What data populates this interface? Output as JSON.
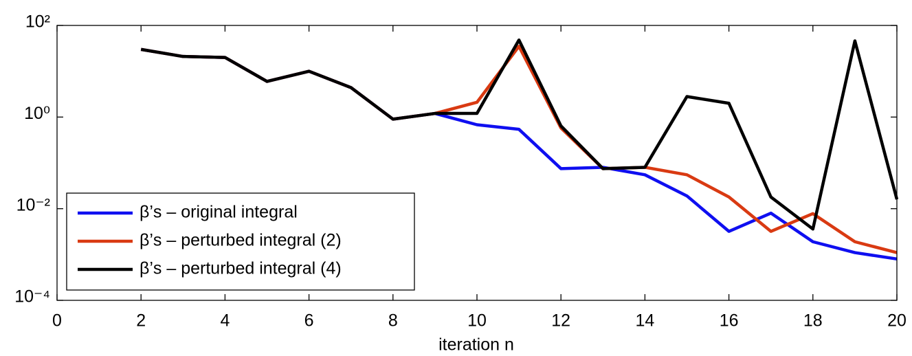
{
  "chart_data": {
    "type": "line",
    "x_label": "iteration n",
    "x": [
      2,
      3,
      4,
      5,
      6,
      7,
      8,
      9,
      10,
      11,
      12,
      13,
      14,
      15,
      16,
      17,
      18,
      19,
      20
    ],
    "series": [
      {
        "name": "β’s – original integral",
        "color": "#0f0ff0",
        "values": [
          30,
          21,
          20,
          6,
          10,
          4.4,
          0.9,
          1.2,
          0.68,
          0.54,
          0.075,
          0.08,
          0.055,
          0.019,
          0.0032,
          0.008,
          0.0019,
          0.0011,
          0.0008
        ]
      },
      {
        "name": "β’s – perturbed integral (2)",
        "color": "#d93a12",
        "values": [
          30,
          21,
          20,
          6,
          10,
          4.4,
          0.9,
          1.2,
          2.1,
          35,
          0.58,
          0.075,
          0.08,
          0.055,
          0.018,
          0.0032,
          0.0078,
          0.0019,
          0.0011
        ]
      },
      {
        "name": "β’s – perturbed integral (4)",
        "color": "#000000",
        "values": [
          30,
          21,
          20,
          6,
          10,
          4.4,
          0.9,
          1.2,
          1.2,
          48,
          0.64,
          0.075,
          0.08,
          2.8,
          2.0,
          0.018,
          0.0036,
          46,
          0.016
        ]
      }
    ],
    "xlim": [
      0,
      20
    ],
    "xticks": [
      0,
      2,
      4,
      6,
      8,
      10,
      12,
      14,
      16,
      18,
      20
    ],
    "ylim": [
      0.0001,
      100
    ],
    "y_scale": "log",
    "yticks": [
      {
        "value": 0.0001,
        "label": "10⁻⁴"
      },
      {
        "value": 0.01,
        "label": "10⁻²"
      },
      {
        "value": 1,
        "label": "10⁰"
      },
      {
        "value": 100,
        "label": "10²"
      }
    ],
    "grid": false,
    "legend_position": "lower left"
  }
}
